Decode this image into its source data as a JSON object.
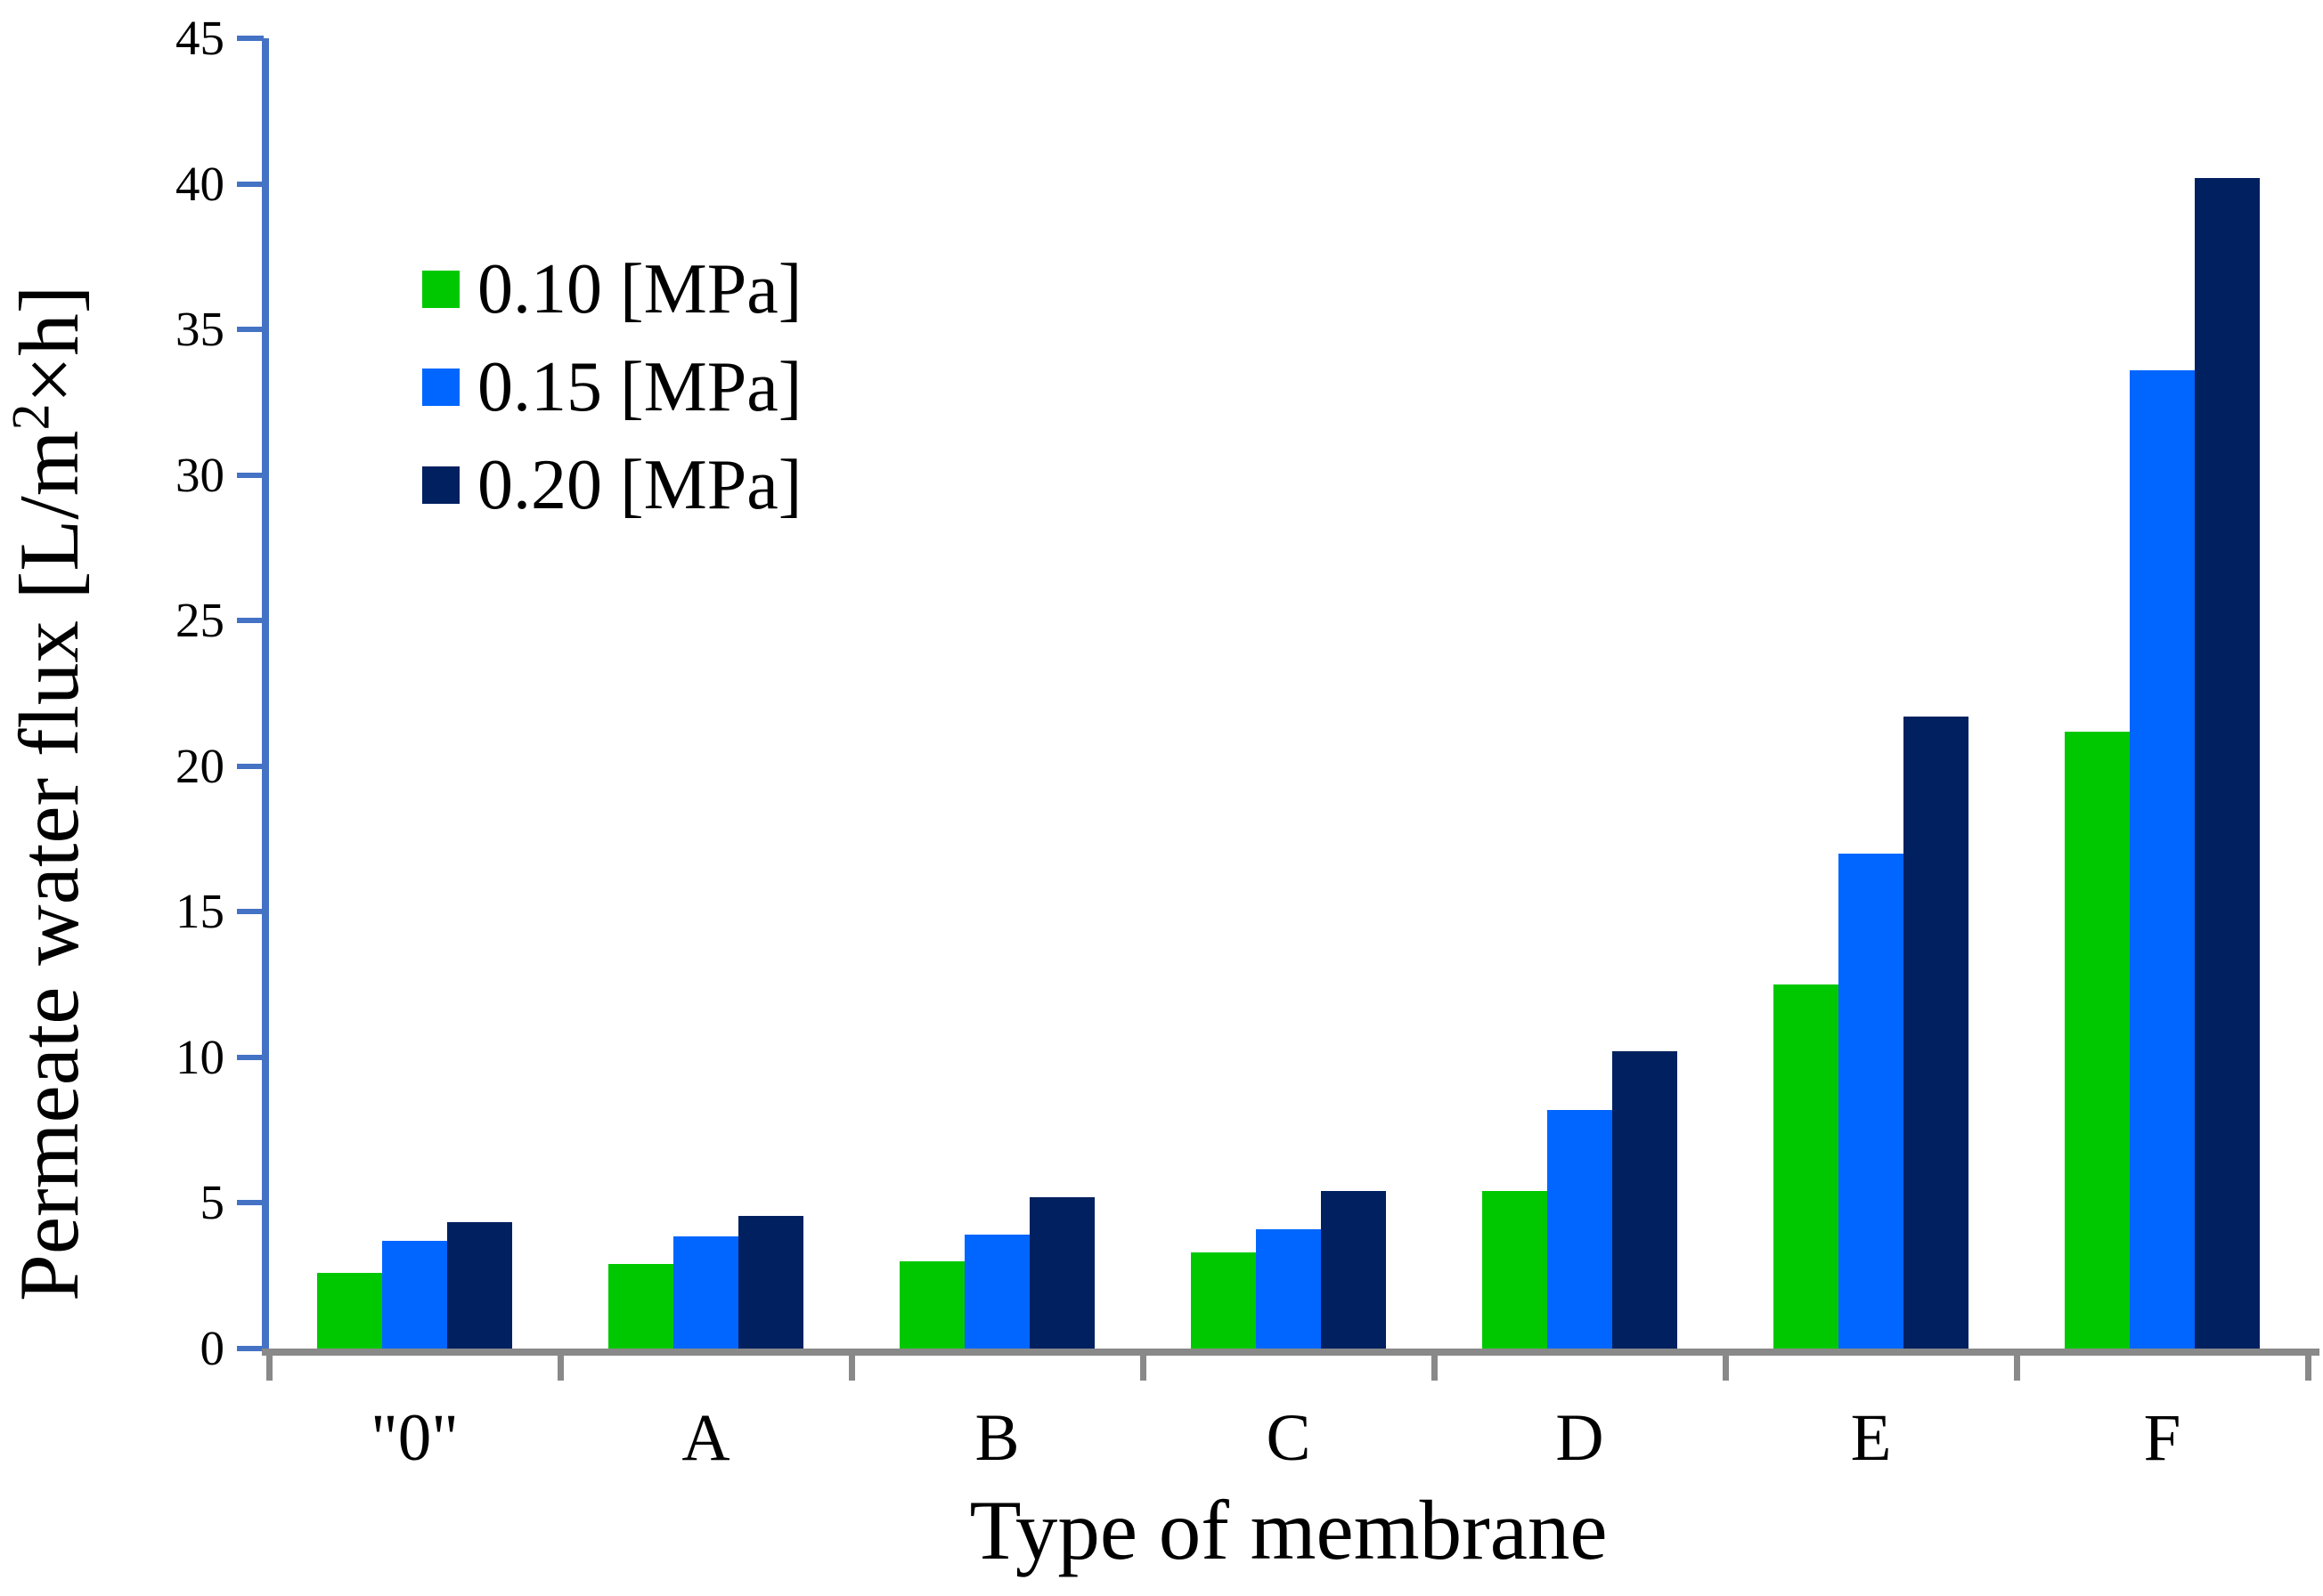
{
  "chart_data": {
    "type": "bar",
    "title": "",
    "xlabel": "Type of membrane",
    "ylabel": "Permeate water flux [L/m2×h]",
    "ylabel_parts": {
      "pre": "Permeate water flux [L/m",
      "sup": "2",
      "post": "×h]"
    },
    "categories": [
      "\"0\"",
      "A",
      "B",
      "C",
      "D",
      "E",
      "F"
    ],
    "series": [
      {
        "name": "0.10 [MPa]",
        "color": "#00C800",
        "values": [
          2.6,
          2.9,
          3.0,
          3.3,
          5.4,
          12.5,
          21.2
        ]
      },
      {
        "name": "0.15 [MPa]",
        "color": "#0066FF",
        "values": [
          3.7,
          3.85,
          3.9,
          4.1,
          8.2,
          17.0,
          33.6
        ]
      },
      {
        "name": "0.20 [MPa]",
        "color": "#002060",
        "values": [
          4.35,
          4.55,
          5.2,
          5.4,
          10.2,
          21.7,
          40.2
        ]
      }
    ],
    "ylim": [
      0,
      45
    ],
    "yticks": [
      0,
      5,
      10,
      15,
      20,
      25,
      30,
      35,
      40,
      45
    ],
    "grid": false,
    "legend_position": "upper-left-inside"
  },
  "colors": {
    "y_axis": "#4472C4",
    "x_axis": "#898989",
    "text": "#000000",
    "background": "#FFFFFF"
  }
}
